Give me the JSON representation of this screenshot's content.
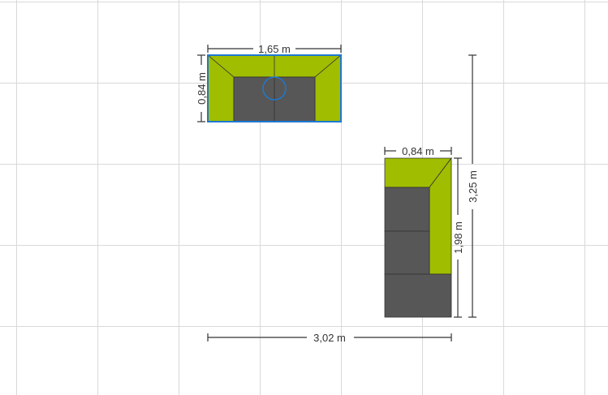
{
  "plan": {
    "grid_color": "#d9d9d9",
    "line_color": "#333333",
    "selection_color": "#1e78d2"
  },
  "sofa_two_seater": {
    "width_label": "1,65 m",
    "depth_label": "0,84 m",
    "cushion_color": "#a0bd00",
    "seat_color": "#575757",
    "selected": true
  },
  "corner_sofa": {
    "width_label": "0,84 m",
    "length_label": "1,98 m",
    "cushion_color": "#a0bd00",
    "seat_color": "#575757"
  },
  "overall": {
    "width_label": "3,02 m",
    "height_label": "3,25 m"
  },
  "icons": {
    "rotate_handle": "rotate-handle-icon"
  }
}
